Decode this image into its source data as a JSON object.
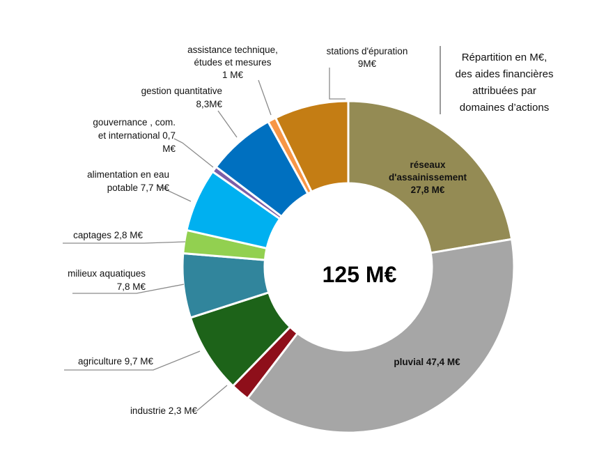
{
  "chart_data": {
    "type": "pie",
    "variant": "donut",
    "title": "Répartition en M€, des aides financières attribuées par domaines d'actions",
    "title_lines": [
      "Répartition en M€,",
      "des aides financières",
      "attribuées par",
      "domaines d’actions"
    ],
    "center_label": "125 M€",
    "unit": "M€",
    "slices": [
      {
        "key": "reseaux",
        "name": "réseaux d'assainissement",
        "value": 27.8,
        "color": "#948B54",
        "label_lines": [
          "réseaux",
          "d'assainissement",
          "27,8 M€"
        ],
        "bold": true
      },
      {
        "key": "pluvial",
        "name": "pluvial",
        "value": 47.4,
        "color": "#A6A6A6",
        "label_lines": [
          "pluvial 47,4 M€"
        ],
        "bold": true
      },
      {
        "key": "industrie",
        "name": "industrie",
        "value": 2.3,
        "color": "#8E0F1A",
        "label_lines": [
          "industrie 2,3 M€"
        ],
        "bold": false
      },
      {
        "key": "agriculture",
        "name": "agriculture",
        "value": 9.7,
        "color": "#1D6319",
        "label_lines": [
          "agriculture 9,7 M€"
        ],
        "bold": false
      },
      {
        "key": "milieux",
        "name": "milieux aquatiques",
        "value": 7.8,
        "color": "#31859C",
        "label_lines": [
          "milieux aquatiques",
          "7,8 M€"
        ],
        "bold": false
      },
      {
        "key": "captages",
        "name": "captages",
        "value": 2.8,
        "color": "#92D050",
        "label_lines": [
          "captages 2,8 M€"
        ],
        "bold": false
      },
      {
        "key": "alimentation",
        "name": "alimentation en eau potable",
        "value": 7.7,
        "color": "#00B0F0",
        "label_lines": [
          "alimentation en eau",
          "potable 7,7 M€"
        ],
        "bold": false
      },
      {
        "key": "gouvernance",
        "name": "gouvernance , com. et international",
        "value": 0.7,
        "color": "#7B5EA7",
        "label_lines": [
          "gouvernance , com.",
          "et international  0,7",
          "M€"
        ],
        "bold": false
      },
      {
        "key": "gestion",
        "name": "gestion quantitative",
        "value": 8.3,
        "color": "#0070C0",
        "label_lines": [
          "gestion quantitative",
          "8,3M€"
        ],
        "bold": false
      },
      {
        "key": "assistance",
        "name": "assistance technique, études et mesures",
        "value": 1.0,
        "color": "#F79646",
        "label_lines": [
          "assistance technique,",
          "études et mesures",
          "1 M€"
        ],
        "bold": false
      },
      {
        "key": "stations",
        "name": "stations d'épuration",
        "value": 9.0,
        "color": "#C47D14",
        "label_lines": [
          "stations d'épuration",
          "9M€"
        ],
        "bold": false
      }
    ]
  }
}
